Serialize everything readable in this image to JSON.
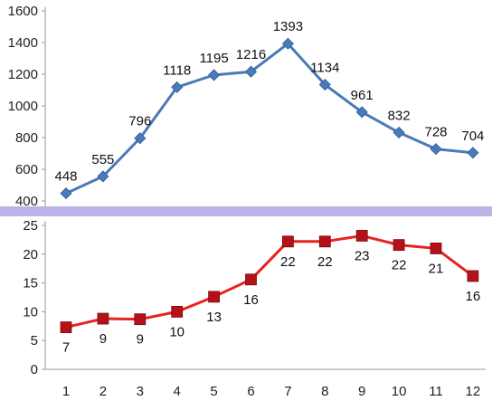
{
  "chart_data": [
    {
      "type": "line",
      "title": "",
      "xlabel": "",
      "ylabel": "",
      "x": [
        1,
        2,
        3,
        4,
        5,
        6,
        7,
        8,
        9,
        10,
        11,
        12
      ],
      "ylim": [
        400,
        1600
      ],
      "yticks": [
        "400",
        "600",
        "800",
        "1000",
        "1200",
        "1400",
        "1600"
      ],
      "series": [
        {
          "values": [
            448,
            555,
            796,
            1118,
            1195,
            1216,
            1393,
            1134,
            961,
            832,
            728,
            704
          ],
          "labels": [
            "448",
            "555",
            "796",
            "1118",
            "1195",
            "1216",
            "1393",
            "1134",
            "961",
            "832",
            "728",
            "704"
          ],
          "color": "#4a7ab8",
          "marker": "diamond"
        }
      ],
      "grid": false,
      "legend": "none"
    },
    {
      "type": "line",
      "title": "",
      "xlabel": "",
      "ylabel": "",
      "x": [
        1,
        2,
        3,
        4,
        5,
        6,
        7,
        8,
        9,
        10,
        11,
        12
      ],
      "xticks": [
        "1",
        "2",
        "3",
        "4",
        "5",
        "6",
        "7",
        "8",
        "9",
        "10",
        "11",
        "12"
      ],
      "ylim": [
        0,
        25
      ],
      "yticks": [
        "0",
        "5",
        "10",
        "15",
        "20",
        "25"
      ],
      "series": [
        {
          "values": [
            7.3,
            8.8,
            8.7,
            10.0,
            12.6,
            15.6,
            22.2,
            22.2,
            23.2,
            21.6,
            21.0,
            16.2
          ],
          "labels": [
            "7",
            "9",
            "9",
            "10",
            "13",
            "16",
            "22",
            "22",
            "23",
            "22",
            "21",
            "16"
          ],
          "color": "#e8231f",
          "marker_color": "#b4111a",
          "marker": "square"
        }
      ],
      "grid": false,
      "legend": "none"
    }
  ],
  "colors": {
    "axis": "#9a9a9a",
    "separator": "#b9b3e6",
    "background": "#ffffff"
  }
}
